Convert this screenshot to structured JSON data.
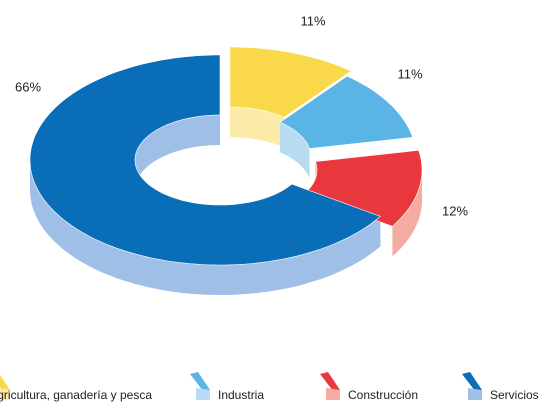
{
  "chart_data": {
    "type": "pie",
    "donut": true,
    "categories": [
      "Agricultura, ganadería y pesca",
      "Industria",
      "Construcción",
      "Servicios"
    ],
    "values": [
      11,
      11,
      12,
      66
    ],
    "value_labels": [
      "11%",
      "11%",
      "12%",
      "66%"
    ],
    "colors": [
      "#f9d94a",
      "#5ab4e5",
      "#e8383d",
      "#0a6db7"
    ],
    "side_colors": [
      "#fbeaa8",
      "#b7dcf2",
      "#f5aaa2",
      "#9fbfe6"
    ],
    "legend": "bottom"
  }
}
